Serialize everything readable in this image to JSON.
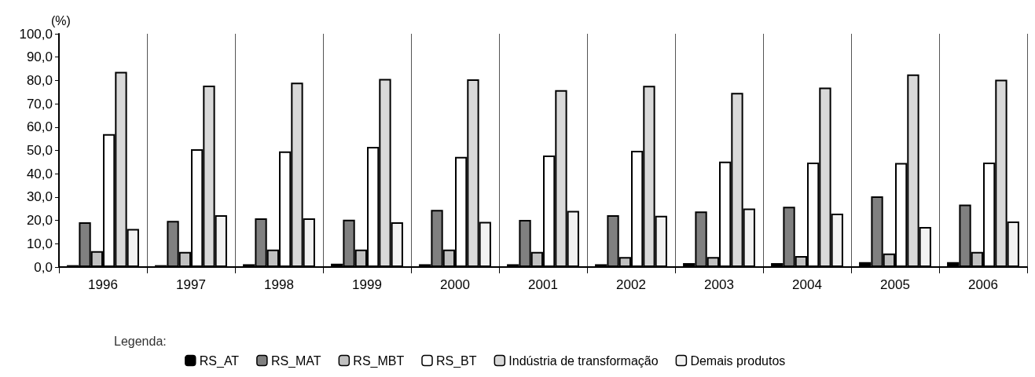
{
  "chart_data": {
    "type": "bar",
    "ylabel": "(%)",
    "legend_title": "Legenda:",
    "categories": [
      "1996",
      "1997",
      "1998",
      "1999",
      "2000",
      "2001",
      "2002",
      "2003",
      "2004",
      "2005",
      "2006"
    ],
    "series": [
      {
        "name": "RS_AT",
        "color": "#000000",
        "values": [
          0.8,
          0.8,
          1.2,
          1.4,
          1.2,
          1.2,
          1.2,
          1.7,
          1.7,
          2.1,
          2.1
        ]
      },
      {
        "name": "RS_MAT",
        "color": "#808080",
        "values": [
          19.2,
          19.8,
          20.9,
          20.3,
          24.5,
          20.2,
          22.2,
          23.8,
          25.8,
          30.3,
          26.8
        ]
      },
      {
        "name": "RS_MBT",
        "color": "#c0c0c0",
        "values": [
          6.8,
          6.5,
          7.5,
          7.5,
          7.5,
          6.5,
          4.3,
          4.3,
          4.7,
          5.8,
          6.5
        ]
      },
      {
        "name": "RS_BT",
        "color": "#ffffff",
        "values": [
          57.0,
          50.5,
          49.6,
          51.5,
          47.2,
          47.8,
          49.8,
          45.2,
          44.8,
          44.6,
          44.8
        ]
      },
      {
        "name": "Indústria de transformação",
        "color": "#d9d9d9",
        "values": [
          83.7,
          77.8,
          79.0,
          80.6,
          80.5,
          75.8,
          77.7,
          74.7,
          76.9,
          82.6,
          80.3
        ]
      },
      {
        "name": "Demais produtos",
        "color": "#f2f2f2",
        "values": [
          16.3,
          22.2,
          20.9,
          19.2,
          19.4,
          24.1,
          22.0,
          25.1,
          22.9,
          17.2,
          19.5
        ]
      }
    ],
    "ylim": [
      0,
      100
    ],
    "yticks": [
      {
        "value": 0,
        "label": "0,0"
      },
      {
        "value": 10,
        "label": "10,0"
      },
      {
        "value": 20,
        "label": "20,0"
      },
      {
        "value": 30,
        "label": "30,0"
      },
      {
        "value": 40,
        "label": "40,0"
      },
      {
        "value": 50,
        "label": "50,0"
      },
      {
        "value": 60,
        "label": "60,0"
      },
      {
        "value": 70,
        "label": "70,0"
      },
      {
        "value": 80,
        "label": "80,0"
      },
      {
        "value": 90,
        "label": "90,0"
      },
      {
        "value": 100,
        "label": "100,0"
      }
    ],
    "grid": "x",
    "legend": "bottom"
  }
}
